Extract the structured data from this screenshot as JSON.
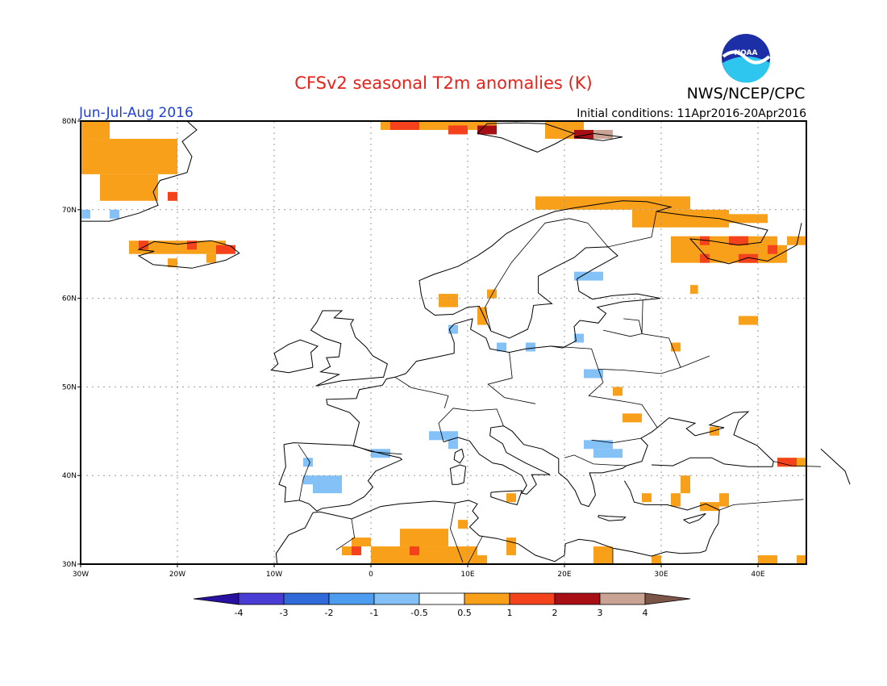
{
  "header": {
    "title": "CFSv2 seasonal T2m anomalies (K)",
    "org": "NWS/NCEP/CPC",
    "logo_text": "NOAA",
    "period": "Jun-Jul-Aug 2016",
    "initial_conditions": "Initial conditions: 11Apr2016-20Apr2016"
  },
  "colors": {
    "title": "#e8221b",
    "period": "#1f3fd9",
    "frame": "#000000",
    "grid": "#9a9a9a",
    "coast": "#000000"
  },
  "axes": {
    "lat_ticks": [
      "80N",
      "70N",
      "60N",
      "50N",
      "40N",
      "30N"
    ],
    "lon_ticks": [
      "30W",
      "20W",
      "10W",
      "0",
      "10E",
      "20E",
      "30E",
      "40E"
    ],
    "lat_range": [
      30,
      80
    ],
    "lon_range": [
      -30,
      45
    ]
  },
  "colorbar": {
    "labels": [
      "-4",
      "-3",
      "-2",
      "-1",
      "-0.5",
      "0.5",
      "1",
      "2",
      "3",
      "4"
    ],
    "colors": [
      "#2a10a0",
      "#4a3dd6",
      "#2f6ad8",
      "#4e9cf0",
      "#84c1f7",
      "#ffffff",
      "#f9a01b",
      "#f4431c",
      "#a70f14",
      "#c9a394",
      "#7a5548"
    ]
  },
  "anomalies": {
    "warm_1": [
      [
        -30,
        78,
        -27,
        80
      ],
      [
        -30,
        74,
        -20,
        78
      ],
      [
        -28,
        71,
        -22,
        74
      ],
      [
        -25,
        65,
        -15,
        66.5
      ],
      [
        -17,
        64,
        -16,
        65
      ],
      [
        -21,
        63.5,
        -20,
        64.5
      ],
      [
        1,
        79,
        13,
        80
      ],
      [
        18,
        78,
        22,
        80
      ],
      [
        17,
        70,
        33,
        71.5
      ],
      [
        27,
        68,
        37,
        70
      ],
      [
        33,
        68.5,
        41,
        69.5
      ],
      [
        31,
        64,
        42,
        67
      ],
      [
        39,
        64,
        43,
        66
      ],
      [
        43,
        66,
        45,
        67
      ],
      [
        38,
        57,
        40,
        58
      ],
      [
        33,
        60.5,
        33.8,
        61.5
      ],
      [
        12,
        60,
        13,
        61
      ],
      [
        7,
        59,
        9,
        60.5
      ],
      [
        11,
        57,
        12,
        59
      ],
      [
        31,
        54,
        32,
        55
      ],
      [
        25,
        49,
        26,
        50
      ],
      [
        26,
        46,
        28,
        47
      ],
      [
        35,
        44.5,
        36,
        45.5
      ],
      [
        42,
        41,
        45,
        42
      ],
      [
        32,
        38,
        33,
        40
      ],
      [
        31,
        36.5,
        32,
        38
      ],
      [
        36,
        36.5,
        37,
        38
      ],
      [
        34,
        36,
        36,
        37
      ],
      [
        28,
        37,
        29,
        38
      ],
      [
        14,
        37,
        15,
        38
      ],
      [
        -2,
        32,
        0,
        33
      ],
      [
        -3,
        31,
        -1,
        32
      ],
      [
        3,
        32,
        8,
        34
      ],
      [
        0,
        30,
        11,
        32
      ],
      [
        6,
        30,
        9,
        31
      ],
      [
        10,
        30,
        12,
        31
      ],
      [
        9,
        34,
        10,
        35
      ],
      [
        14,
        31,
        15,
        33
      ],
      [
        23,
        30,
        25,
        32
      ],
      [
        29,
        30,
        30,
        31
      ],
      [
        40,
        30,
        42,
        31
      ],
      [
        44,
        30,
        45,
        31
      ]
    ],
    "warm_2": [
      [
        -21,
        71,
        -20,
        72
      ],
      [
        -24,
        65.5,
        -23,
        66.5
      ],
      [
        -19,
        65.5,
        -18,
        66.5
      ],
      [
        -16,
        65,
        -14,
        66
      ],
      [
        2,
        79,
        5,
        80
      ],
      [
        8,
        78.5,
        10,
        79.5
      ],
      [
        34,
        66,
        35,
        67
      ],
      [
        37,
        66,
        39,
        67
      ],
      [
        34,
        64,
        35,
        65
      ],
      [
        38,
        64,
        40,
        65
      ],
      [
        41,
        65,
        42,
        66
      ],
      [
        42,
        41,
        44,
        42
      ],
      [
        -2,
        31,
        -1,
        32
      ],
      [
        4,
        31,
        5,
        32
      ]
    ],
    "warm_3": [
      [
        11,
        78.5,
        13,
        79.5
      ],
      [
        21,
        78,
        23,
        79
      ]
    ],
    "warm_4": [
      [
        23,
        78,
        25,
        79
      ]
    ],
    "cold_1": [
      [
        -27,
        69,
        -26,
        70
      ],
      [
        -30,
        69,
        -29,
        70
      ],
      [
        21,
        62,
        24,
        63
      ],
      [
        8,
        56,
        9,
        57
      ],
      [
        13,
        54,
        14,
        55
      ],
      [
        16,
        54,
        17,
        55
      ],
      [
        21,
        55,
        22,
        56
      ],
      [
        22,
        51,
        24,
        52
      ],
      [
        6,
        44,
        9,
        45
      ],
      [
        8,
        43,
        9,
        44
      ],
      [
        0,
        42,
        2,
        43
      ],
      [
        22,
        43,
        25,
        44
      ],
      [
        23,
        42,
        26,
        43
      ],
      [
        -6,
        38,
        -3,
        40
      ],
      [
        -7,
        39,
        -6,
        40
      ],
      [
        -7,
        41,
        -6,
        42
      ]
    ]
  }
}
